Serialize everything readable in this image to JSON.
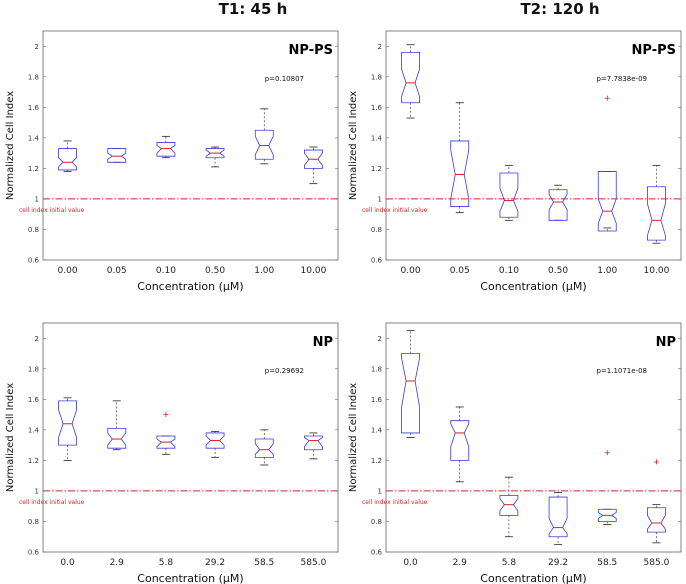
{
  "column_titles": [
    "T1: 45 h",
    "T2: 120 h"
  ],
  "chart_data": [
    {
      "type": "boxplot",
      "title": "NP-PS",
      "column": "T1: 45 h",
      "p_value": "p=0.10807",
      "xlabel": "Concentration (μM)",
      "ylabel": "Normalized Cell Index",
      "ylim": [
        0.6,
        2.1
      ],
      "yticks": [
        "0.6",
        "0.8",
        "1",
        "1.2",
        "1.4",
        "1.6",
        "1.8",
        "2"
      ],
      "reference_line": {
        "y": 1.0,
        "label": "cell index initial value"
      },
      "categories": [
        "0.00",
        "0.05",
        "0.10",
        "0.50",
        "1.00",
        "10.00"
      ],
      "boxes": [
        {
          "q1": 1.19,
          "median": 1.24,
          "q3": 1.33,
          "notch": [
            1.21,
            1.27
          ],
          "whisker": [
            1.18,
            1.38
          ],
          "outliers": []
        },
        {
          "q1": 1.24,
          "median": 1.28,
          "q3": 1.33,
          "notch": [
            1.26,
            1.3
          ],
          "whisker": [
            1.24,
            1.33
          ],
          "outliers": []
        },
        {
          "q1": 1.28,
          "median": 1.33,
          "q3": 1.37,
          "notch": [
            1.3,
            1.35
          ],
          "whisker": [
            1.27,
            1.41
          ],
          "outliers": []
        },
        {
          "q1": 1.27,
          "median": 1.3,
          "q3": 1.33,
          "notch": [
            1.28,
            1.32
          ],
          "whisker": [
            1.21,
            1.34
          ],
          "outliers": []
        },
        {
          "q1": 1.26,
          "median": 1.35,
          "q3": 1.45,
          "notch": [
            1.29,
            1.41
          ],
          "whisker": [
            1.23,
            1.59
          ],
          "outliers": []
        },
        {
          "q1": 1.2,
          "median": 1.26,
          "q3": 1.32,
          "notch": [
            1.22,
            1.3
          ],
          "whisker": [
            1.1,
            1.34
          ],
          "outliers": []
        }
      ]
    },
    {
      "type": "boxplot",
      "title": "NP-PS",
      "column": "T2: 120 h",
      "p_value": "p=7.7838e-09",
      "xlabel": "Concentration (μM)",
      "ylabel": "Normalized Cell Index",
      "ylim": [
        0.6,
        2.1
      ],
      "yticks": [
        "0.6",
        "0.8",
        "1",
        "1.2",
        "1.4",
        "1.6",
        "1.8",
        "2"
      ],
      "reference_line": {
        "y": 1.0,
        "label": "cell index initial value"
      },
      "categories": [
        "0.00",
        "0.05",
        "0.10",
        "0.50",
        "1.00",
        "10.00"
      ],
      "boxes": [
        {
          "q1": 1.63,
          "median": 1.76,
          "q3": 1.96,
          "notch": [
            1.67,
            1.85
          ],
          "whisker": [
            1.53,
            2.01
          ],
          "outliers": []
        },
        {
          "q1": 0.95,
          "median": 1.16,
          "q3": 1.38,
          "notch": [
            1.0,
            1.32
          ],
          "whisker": [
            0.91,
            1.63
          ],
          "outliers": []
        },
        {
          "q1": 0.88,
          "median": 0.99,
          "q3": 1.17,
          "notch": [
            0.92,
            1.07
          ],
          "whisker": [
            0.86,
            1.22
          ],
          "outliers": []
        },
        {
          "q1": 0.86,
          "median": 0.98,
          "q3": 1.06,
          "notch": [
            0.93,
            1.03
          ],
          "whisker": [
            0.86,
            1.09
          ],
          "outliers": []
        },
        {
          "q1": 0.79,
          "median": 0.92,
          "q3": 1.18,
          "notch": [
            0.84,
            1.0
          ],
          "whisker": [
            0.81,
            1.18
          ],
          "outliers": [
            1.66
          ]
        },
        {
          "q1": 0.73,
          "median": 0.86,
          "q3": 1.08,
          "notch": [
            0.76,
            0.97
          ],
          "whisker": [
            0.71,
            1.22
          ],
          "outliers": []
        }
      ]
    },
    {
      "type": "boxplot",
      "title": "NP",
      "column": "T1: 45 h",
      "p_value": "p=0.29692",
      "xlabel": "Concentration (μM)",
      "ylabel": "Normalized Cell Index",
      "ylim": [
        0.6,
        2.1
      ],
      "yticks": [
        "0.6",
        "0.8",
        "1",
        "1.2",
        "1.4",
        "1.6",
        "1.8",
        "2"
      ],
      "reference_line": {
        "y": 1.0,
        "label": "cell index initial value"
      },
      "categories": [
        "0.0",
        "2.9",
        "5.8",
        "29.2",
        "58.5",
        "585.0"
      ],
      "boxes": [
        {
          "q1": 1.3,
          "median": 1.44,
          "q3": 1.59,
          "notch": [
            1.35,
            1.53
          ],
          "whisker": [
            1.2,
            1.61
          ],
          "outliers": []
        },
        {
          "q1": 1.28,
          "median": 1.34,
          "q3": 1.41,
          "notch": [
            1.3,
            1.38
          ],
          "whisker": [
            1.27,
            1.59
          ],
          "outliers": []
        },
        {
          "q1": 1.28,
          "median": 1.32,
          "q3": 1.36,
          "notch": [
            1.29,
            1.34
          ],
          "whisker": [
            1.24,
            1.36
          ],
          "outliers": [
            1.5
          ]
        },
        {
          "q1": 1.28,
          "median": 1.33,
          "q3": 1.38,
          "notch": [
            1.3,
            1.36
          ],
          "whisker": [
            1.22,
            1.39
          ],
          "outliers": []
        },
        {
          "q1": 1.22,
          "median": 1.27,
          "q3": 1.34,
          "notch": [
            1.24,
            1.31
          ],
          "whisker": [
            1.17,
            1.4
          ],
          "outliers": []
        },
        {
          "q1": 1.27,
          "median": 1.33,
          "q3": 1.36,
          "notch": [
            1.29,
            1.35
          ],
          "whisker": [
            1.21,
            1.38
          ],
          "outliers": []
        }
      ]
    },
    {
      "type": "boxplot",
      "title": "NP",
      "column": "T2: 120 h",
      "p_value": "p=1.1071e-08",
      "xlabel": "Concentration (μM)",
      "ylabel": "Normalized Cell Index",
      "ylim": [
        0.6,
        2.1
      ],
      "yticks": [
        "0.6",
        "0.8",
        "1",
        "1.2",
        "1.4",
        "1.6",
        "1.8",
        "2"
      ],
      "reference_line": {
        "y": 1.0,
        "label": "cell index initial value"
      },
      "categories": [
        "0.0",
        "2.9",
        "5.8",
        "29.2",
        "58.5",
        "585.0"
      ],
      "boxes": [
        {
          "q1": 1.38,
          "median": 1.72,
          "q3": 1.9,
          "notch": [
            1.55,
            1.87
          ],
          "whisker": [
            1.35,
            2.05
          ],
          "outliers": []
        },
        {
          "q1": 1.2,
          "median": 1.38,
          "q3": 1.46,
          "notch": [
            1.29,
            1.44
          ],
          "whisker": [
            1.06,
            1.55
          ],
          "outliers": []
        },
        {
          "q1": 0.84,
          "median": 0.91,
          "q3": 0.97,
          "notch": [
            0.87,
            0.95
          ],
          "whisker": [
            0.7,
            1.09
          ],
          "outliers": []
        },
        {
          "q1": 0.7,
          "median": 0.76,
          "q3": 0.96,
          "notch": [
            0.72,
            0.82
          ],
          "whisker": [
            0.65,
            0.99
          ],
          "outliers": []
        },
        {
          "q1": 0.8,
          "median": 0.84,
          "q3": 0.88,
          "notch": [
            0.82,
            0.86
          ],
          "whisker": [
            0.78,
            0.88
          ],
          "outliers": [
            1.25
          ]
        },
        {
          "q1": 0.73,
          "median": 0.79,
          "q3": 0.89,
          "notch": [
            0.75,
            0.84
          ],
          "whisker": [
            0.66,
            0.91
          ],
          "outliers": [
            1.19
          ]
        }
      ]
    }
  ]
}
